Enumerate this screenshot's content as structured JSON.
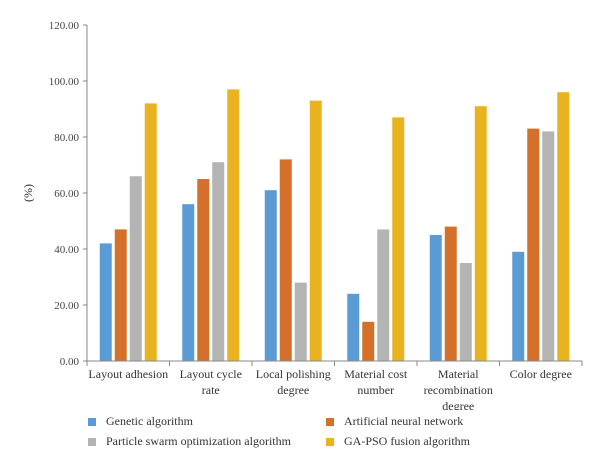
{
  "chart_data": {
    "type": "bar",
    "title": "",
    "ylabel": "(%)",
    "xlabel": "",
    "ylim": [
      0,
      120
    ],
    "yticks": [
      0,
      20,
      40,
      60,
      80,
      100,
      120
    ],
    "ytick_labels": [
      "0.00",
      "20.00",
      "40.00",
      "60.00",
      "80.00",
      "100.00",
      "120.00"
    ],
    "categories": [
      [
        "Layout adhesion"
      ],
      [
        "Layout cycle",
        "rate"
      ],
      [
        "Local polishing",
        "degree"
      ],
      [
        "Material cost",
        "number"
      ],
      [
        "Material",
        "recombination",
        "degree"
      ],
      [
        "Color degree"
      ]
    ],
    "series": [
      {
        "name": "Genetic algorithm",
        "color": "#5B9BD5",
        "values": [
          42,
          56,
          61,
          24,
          45,
          39
        ]
      },
      {
        "name": "Artificial neural network",
        "color": "#D4702A",
        "values": [
          47,
          65,
          72,
          14,
          48,
          83
        ]
      },
      {
        "name": "Particle swarm optimization algorithm",
        "color": "#B4B4B4",
        "values": [
          66,
          71,
          28,
          47,
          35,
          82
        ]
      },
      {
        "name": "GA-PSO fusion algorithm",
        "color": "#E9B320",
        "values": [
          92,
          97,
          93,
          87,
          91,
          96
        ]
      }
    ],
    "grid": false,
    "legend_position": "bottom"
  }
}
